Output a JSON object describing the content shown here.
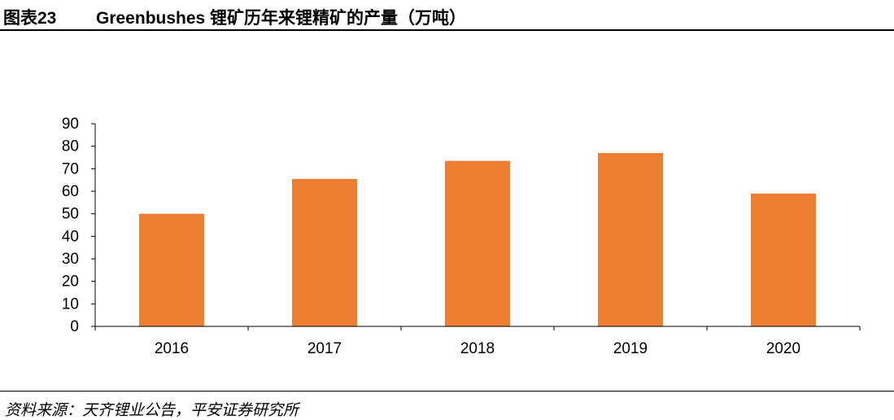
{
  "header": {
    "figure_label": "图表23",
    "title": "Greenbushes 锂矿历年来锂精矿的产量（万吨）"
  },
  "footer": {
    "source": "资料来源：天齐锂业公告，平安证券研究所"
  },
  "colors": {
    "bar": "#ED7D31",
    "axis": "#000000"
  },
  "chart_data": {
    "type": "bar",
    "title": "Greenbushes 锂矿历年来锂精矿的产量（万吨）",
    "categories": [
      "2016",
      "2017",
      "2018",
      "2019",
      "2020"
    ],
    "values": [
      50,
      65.5,
      73.5,
      77,
      59
    ],
    "ylim": [
      0,
      90
    ],
    "yticks": [
      0,
      10,
      20,
      30,
      40,
      50,
      60,
      70,
      80,
      90
    ],
    "xlabel": "",
    "ylabel": "",
    "grid": false,
    "legend": "none"
  }
}
